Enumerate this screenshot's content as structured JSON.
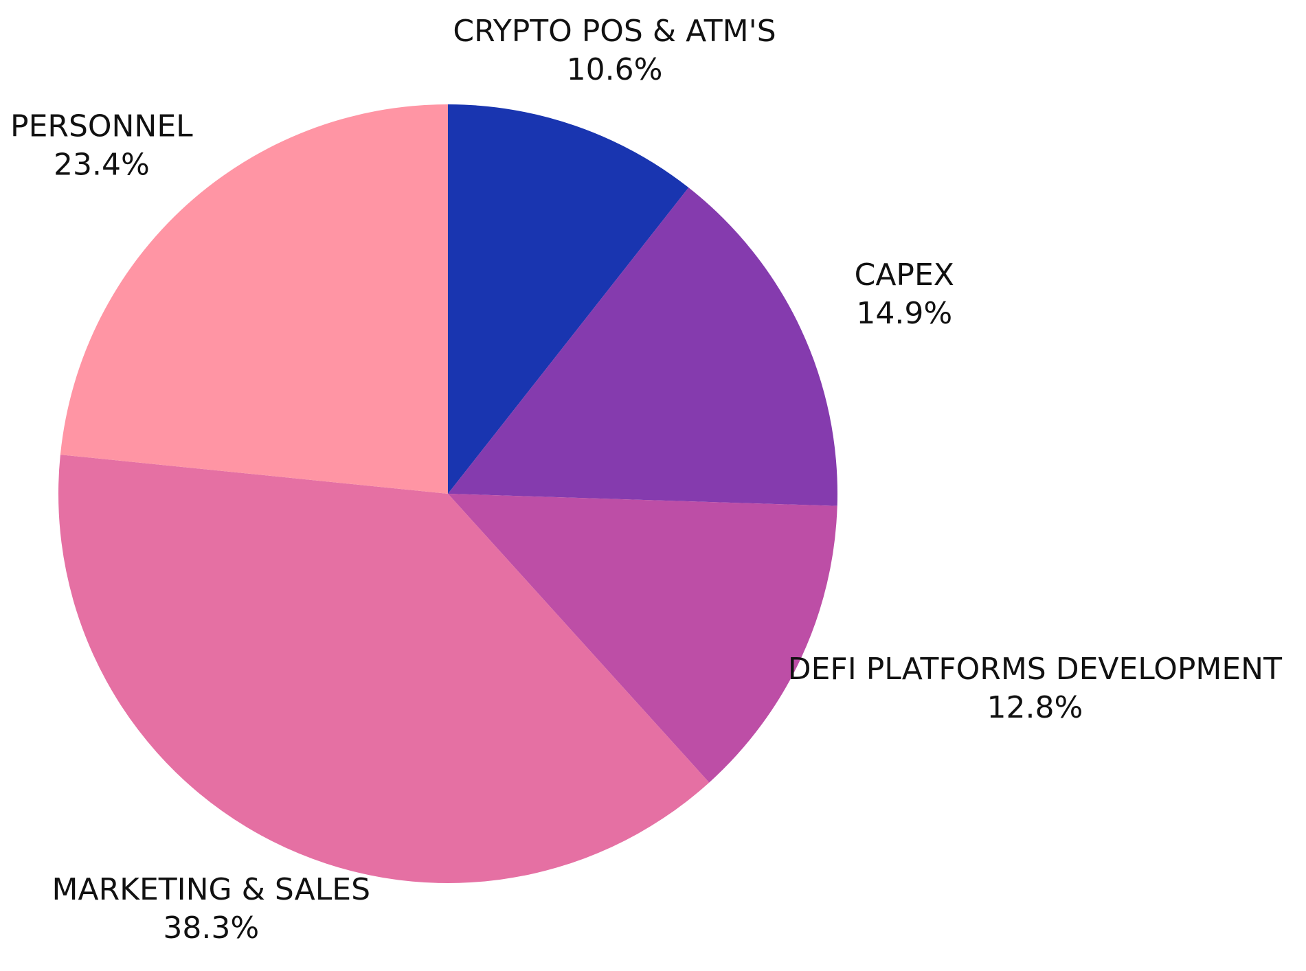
{
  "chart_data": {
    "type": "pie",
    "categories": [
      "CRYPTO POS & ATM'S",
      "CAPEX",
      "DEFI PLATFORMS DEVELOPMENT",
      "MARKETING & SALES",
      "PERSONNEL"
    ],
    "values": [
      10.6,
      14.9,
      12.8,
      38.3,
      23.4
    ],
    "value_labels": [
      "10.6%",
      "14.9%",
      "12.8%",
      "38.3%",
      "23.4%"
    ],
    "colors": [
      "#1935b0",
      "#853bae",
      "#bd4ea6",
      "#e570a3",
      "#ff95a4"
    ]
  }
}
